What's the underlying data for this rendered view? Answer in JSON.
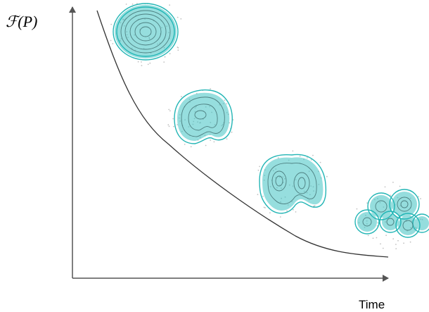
{
  "axes": {
    "y_label": "ℱ(P)",
    "x_label": "Time"
  }
}
